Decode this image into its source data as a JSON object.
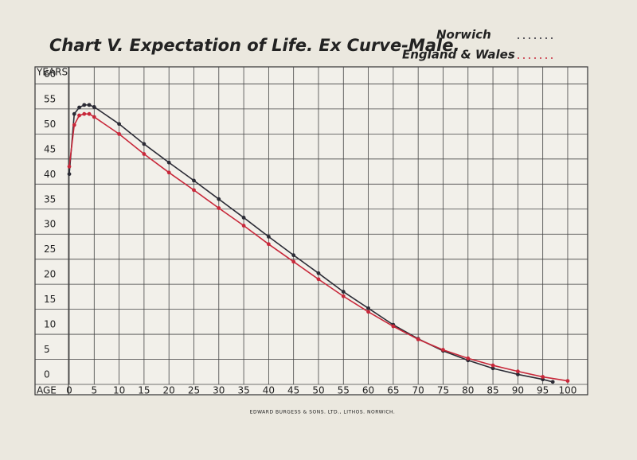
{
  "chart_data": {
    "type": "line",
    "title": "Chart V. Expectation of Life. Ex Curve-Male.",
    "y_label": "YEARS",
    "x_label": "AGE",
    "footer": "EDWARD BURGESS & SONS. LTD., LITHOS. NORWICH.",
    "series": [
      {
        "name": "Norwich",
        "color": "#2b2b35",
        "x": [
          0,
          1,
          2,
          3,
          4,
          5,
          10,
          15,
          20,
          25,
          30,
          35,
          40,
          45,
          50,
          55,
          60,
          65,
          70,
          75,
          80,
          85,
          90,
          95,
          97
        ],
        "values": [
          42,
          54,
          55.3,
          55.8,
          55.8,
          55.4,
          52,
          48,
          44.3,
          40.7,
          37,
          33.3,
          29.5,
          25.8,
          22.2,
          18.5,
          15.2,
          11.9,
          9.1,
          6.7,
          4.8,
          3.2,
          2,
          1,
          0.5
        ]
      },
      {
        "name": "England & Wales",
        "color": "#c8283a",
        "x": [
          0,
          1,
          2,
          3,
          4,
          5,
          10,
          15,
          20,
          25,
          30,
          35,
          40,
          45,
          50,
          55,
          60,
          65,
          70,
          75,
          80,
          85,
          90,
          95,
          100
        ],
        "values": [
          43.5,
          51.8,
          53.7,
          54,
          54,
          53.4,
          50,
          46,
          42.3,
          38.8,
          35.2,
          31.7,
          28,
          24.5,
          21,
          17.6,
          14.5,
          11.6,
          9,
          6.9,
          5.2,
          3.8,
          2.6,
          1.5,
          0.7
        ]
      }
    ],
    "xlim": [
      0,
      104
    ],
    "xticks": [
      0,
      5,
      10,
      15,
      20,
      25,
      30,
      35,
      40,
      45,
      50,
      55,
      60,
      65,
      70,
      75,
      80,
      85,
      90,
      95,
      100
    ],
    "ylim": [
      0,
      61.5
    ],
    "yticks": [
      0,
      5,
      10,
      15,
      20,
      25,
      30,
      35,
      40,
      45,
      50,
      55,
      60
    ],
    "grid": true
  }
}
